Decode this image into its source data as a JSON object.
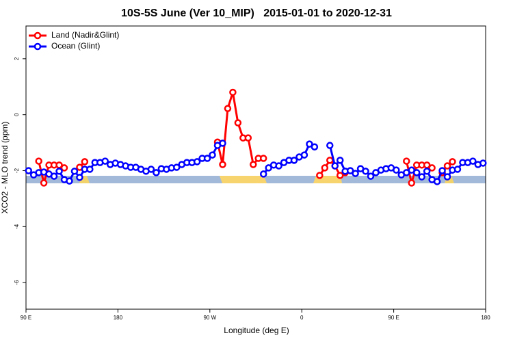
{
  "chart_data": {
    "type": "line",
    "title": "10S-5S June (Ver 10_MIP)   2015-01-01 to 2020-12-31",
    "x_label": "Longitude (deg E)",
    "y_label": "XCO2 - MLO trend (ppm)",
    "xlim": [
      90,
      540
    ],
    "ylim": [
      -6.95,
      3.17
    ],
    "xticks": [
      {
        "value": 90,
        "label": "90 E"
      },
      180,
      {
        "value": 270,
        "label": "90 W"
      },
      {
        "value": 360,
        "label": "0"
      },
      {
        "value": 450,
        "label": "90 E"
      },
      {
        "value": 540,
        "label": "180"
      }
    ],
    "yticks": [
      -6,
      -4,
      -2,
      0,
      2
    ],
    "grid": false,
    "legend": "top-left",
    "x": [
      92.5,
      97.5,
      102.5,
      107.5,
      112.5,
      117.5,
      122.5,
      127.5,
      132.5,
      137.5,
      142.5,
      147.5,
      152.5,
      157.5,
      162.5,
      167.5,
      172.5,
      177.5,
      182.5,
      187.5,
      192.5,
      197.5,
      202.5,
      207.5,
      212.5,
      217.5,
      222.5,
      227.5,
      232.5,
      237.5,
      242.5,
      247.5,
      252.5,
      257.5,
      262.5,
      267.5,
      272.5,
      277.5,
      282.5,
      287.5,
      292.5,
      297.5,
      302.5,
      307.5,
      312.5,
      317.5,
      322.5,
      327.5,
      332.5,
      337.5,
      342.5,
      347.5,
      352.5,
      357.5,
      362.5,
      367.5,
      372.5,
      377.5,
      382.5,
      387.5,
      392.5,
      397.5,
      402.5,
      407.5,
      412.5,
      417.5,
      422.5,
      427.5,
      432.5,
      437.5,
      442.5,
      447.5,
      452.5,
      457.5,
      462.5,
      467.5,
      472.5,
      477.5,
      482.5,
      487.5,
      492.5,
      497.5,
      502.5,
      507.5,
      512.5,
      517.5,
      522.5,
      527.5,
      532.5,
      537.5
    ],
    "series": [
      {
        "name": "Land (Nadir&Glint)",
        "color": "#ff0000",
        "values": [
          null,
          null,
          -1.66,
          -2.44,
          -1.8,
          -1.8,
          -1.8,
          -1.9,
          null,
          null,
          -1.88,
          -1.68,
          null,
          null,
          null,
          null,
          null,
          null,
          null,
          null,
          null,
          null,
          null,
          null,
          null,
          null,
          null,
          null,
          null,
          null,
          null,
          null,
          null,
          null,
          null,
          null,
          null,
          -0.98,
          -1.78,
          0.22,
          0.8,
          -0.29,
          -0.83,
          -0.83,
          -1.78,
          -1.56,
          -1.56,
          null,
          null,
          null,
          null,
          null,
          null,
          null,
          null,
          null,
          null,
          -2.17,
          -1.9,
          -1.63,
          -1.83,
          -2.17,
          -2.07,
          null,
          null,
          null,
          null,
          null,
          null,
          null,
          null,
          null,
          null,
          null,
          -1.66,
          -2.44,
          -1.8,
          -1.8,
          -1.8,
          -1.9,
          null,
          -2.07,
          -1.83,
          -1.68,
          null,
          null,
          null,
          null,
          null,
          null
        ]
      },
      {
        "name": "Ocean (Glint)",
        "color": "#0000ff",
        "values": [
          -2.0,
          -2.15,
          -2.07,
          -2.05,
          -2.12,
          -2.2,
          -2.02,
          -2.32,
          -2.37,
          -2.02,
          -2.24,
          -1.95,
          -1.95,
          -1.71,
          -1.71,
          -1.66,
          -1.78,
          -1.73,
          -1.78,
          -1.83,
          -1.88,
          -1.88,
          -1.95,
          -2.02,
          -1.95,
          -2.07,
          -1.93,
          -1.95,
          -1.9,
          -1.88,
          -1.78,
          -1.71,
          -1.71,
          -1.68,
          -1.56,
          -1.56,
          -1.44,
          -1.1,
          -1.02,
          null,
          null,
          null,
          null,
          null,
          null,
          null,
          -2.12,
          -1.9,
          -1.8,
          -1.83,
          -1.71,
          -1.63,
          -1.63,
          -1.51,
          -1.44,
          -1.05,
          -1.15,
          null,
          null,
          -1.1,
          -1.83,
          -1.63,
          -2.02,
          -2.0,
          -2.1,
          -1.93,
          -2.02,
          -2.2,
          -2.07,
          -1.98,
          -1.93,
          -1.9,
          -1.98,
          -2.15,
          -2.07,
          -1.98,
          -2.07,
          -2.22,
          -2.02,
          -2.32,
          -2.39,
          -2.0,
          -2.22,
          -1.98,
          -1.95,
          -1.71,
          -1.71,
          -1.66,
          -1.78,
          -1.73
        ]
      }
    ]
  }
}
